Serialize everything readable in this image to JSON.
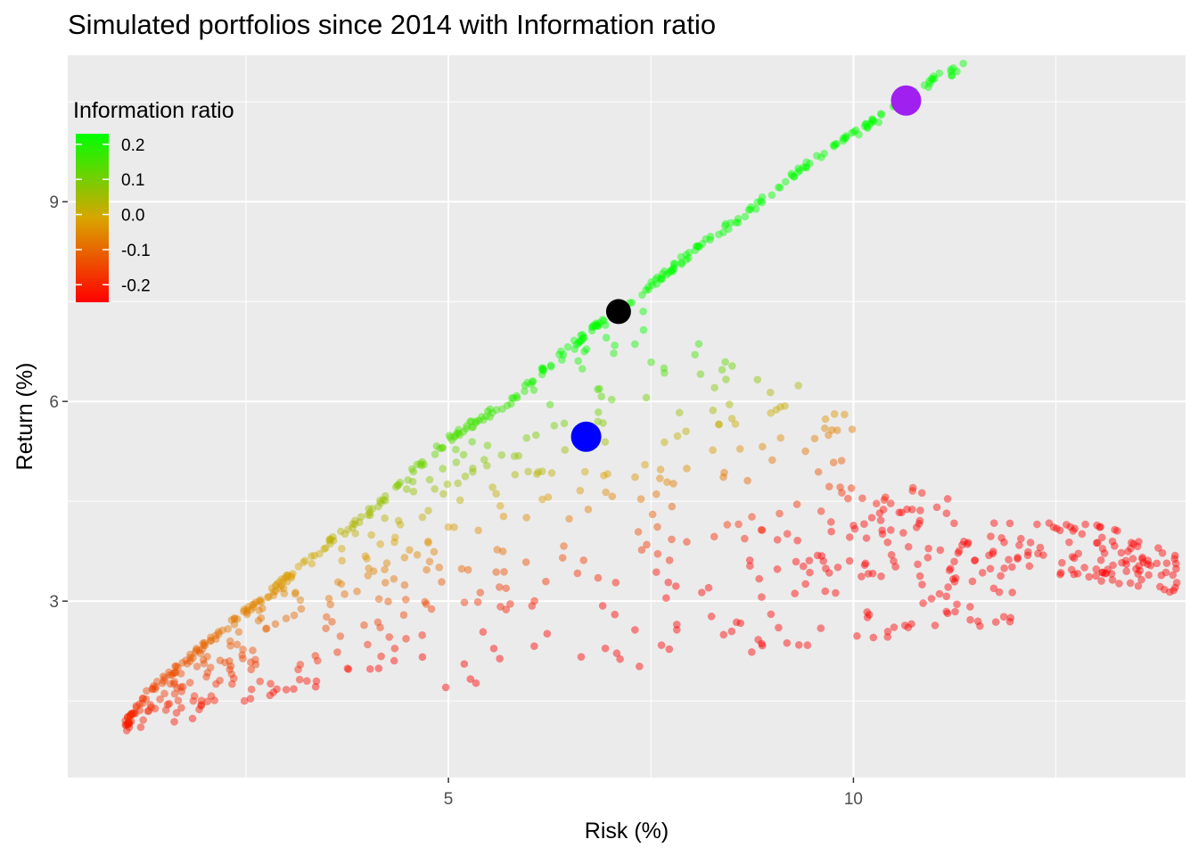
{
  "chart_data": {
    "type": "scatter",
    "title": "Simulated portfolios since 2014 with Information ratio",
    "xlabel": "Risk (%)",
    "ylabel": "Return (%)",
    "xlim": [
      0.3,
      14.1
    ],
    "ylim": [
      0.35,
      11.2
    ],
    "x_ticks": [
      5,
      10
    ],
    "x_tick_labels": [
      "5",
      "10"
    ],
    "y_ticks": [
      3,
      6,
      9
    ],
    "y_tick_labels": [
      "3",
      "6",
      "9"
    ],
    "x_minor_ticks": [
      2.5,
      7.5,
      12.5
    ],
    "y_minor_ticks": [
      1.5,
      4.5,
      7.5,
      10.5
    ],
    "grid": true,
    "color_scale": {
      "title": "Information ratio",
      "placement": "top-left",
      "range": [
        -0.25,
        0.23
      ],
      "ticks": [
        0.2,
        0.1,
        0.0,
        -0.1,
        -0.2
      ],
      "tick_labels": [
        "0.2",
        "0.1",
        "0.0",
        "-0.1",
        "-0.2"
      ],
      "colors": [
        "#ff0000",
        "#d9a500",
        "#00ff00"
      ]
    },
    "highlights": [
      {
        "x": 10.65,
        "y": 10.52,
        "color": "#a020f0"
      },
      {
        "x": 7.1,
        "y": 7.35,
        "color": "#000000"
      },
      {
        "x": 6.7,
        "y": 5.47,
        "color": "#0000ff"
      }
    ],
    "points_note": "cloud of ~1000 simulated portfolios; upper boundary from (1.0, 1.2) to (11.4, 11.1); lower-right tail reaching (14.0, 3.5)",
    "frontier": [
      [
        1.0,
        1.2
      ],
      [
        1.3,
        1.7
      ],
      [
        2.0,
        2.4
      ],
      [
        2.7,
        3.1
      ],
      [
        3.5,
        3.9
      ],
      [
        4.2,
        4.6
      ],
      [
        5.0,
        5.5
      ],
      [
        5.8,
        6.1
      ],
      [
        6.5,
        6.9
      ],
      [
        7.2,
        7.5
      ],
      [
        8.0,
        8.3
      ],
      [
        8.8,
        9.0
      ],
      [
        9.5,
        9.7
      ],
      [
        10.3,
        10.3
      ],
      [
        11.0,
        10.9
      ],
      [
        11.4,
        11.1
      ]
    ],
    "tail": [
      [
        4.8,
        4.7
      ],
      [
        6.0,
        4.9
      ],
      [
        7.5,
        4.8
      ],
      [
        8.5,
        4.5
      ],
      [
        9.5,
        4.4
      ],
      [
        10.5,
        4.3
      ],
      [
        11.5,
        4.0
      ],
      [
        12.5,
        3.8
      ],
      [
        13.5,
        3.6
      ],
      [
        14.0,
        3.5
      ]
    ]
  }
}
